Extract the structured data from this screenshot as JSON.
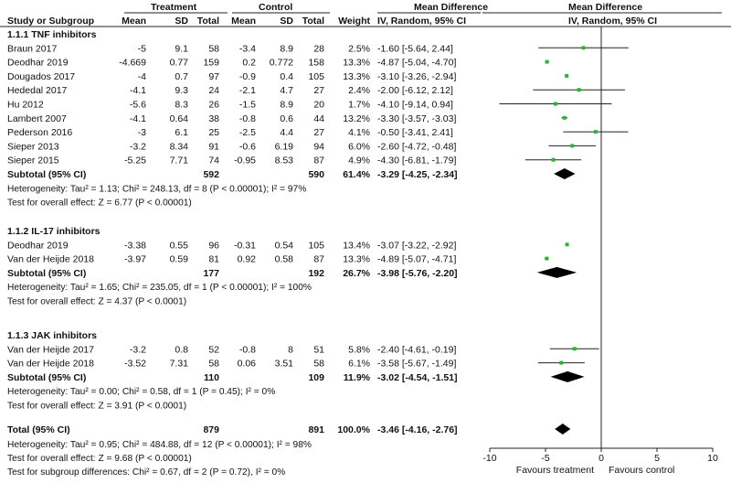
{
  "header": {
    "study_col": "Study or Subgroup",
    "treatment": "Treatment",
    "control": "Control",
    "mean": "Mean",
    "sd": "SD",
    "total": "Total",
    "weight": "Weight",
    "md_title": "Mean Difference",
    "md_method": "IV, Random, 95% CI"
  },
  "chart_data": {
    "type": "forest",
    "title": "Mean Difference",
    "subtitle": "IV, Random, 95% CI",
    "xlim": [
      -10,
      10
    ],
    "xticks": [
      -10,
      -5,
      0,
      5,
      10
    ],
    "xtick_labels": [
      "-10",
      "-5",
      "0",
      "5",
      "10"
    ],
    "xlabel_left": "Favours treatment",
    "xlabel_right": "Favours control",
    "groups": [
      {
        "name": "1.1.1 TNF inhibitors",
        "studies": [
          {
            "study": "Braun 2017",
            "t_mean": "-5",
            "t_sd": "9.1",
            "t_total": "58",
            "c_mean": "-3.4",
            "c_sd": "8.9",
            "c_total": "28",
            "weight": "2.5%",
            "ci_text": "-1.60 [-5.64, 2.44]",
            "md": -1.6,
            "lo": -5.64,
            "hi": 2.44
          },
          {
            "study": "Deodhar 2019",
            "t_mean": "-4.669",
            "t_sd": "0.77",
            "t_total": "159",
            "c_mean": "0.2",
            "c_sd": "0.772",
            "c_total": "158",
            "weight": "13.3%",
            "ci_text": "-4.87 [-5.04, -4.70]",
            "md": -4.87,
            "lo": -5.04,
            "hi": -4.7
          },
          {
            "study": "Dougados 2017",
            "t_mean": "-4",
            "t_sd": "0.7",
            "t_total": "97",
            "c_mean": "-0.9",
            "c_sd": "0.4",
            "c_total": "105",
            "weight": "13.3%",
            "ci_text": "-3.10 [-3.26, -2.94]",
            "md": -3.1,
            "lo": -3.26,
            "hi": -2.94
          },
          {
            "study": "Hededal 2017",
            "t_mean": "-4.1",
            "t_sd": "9.3",
            "t_total": "24",
            "c_mean": "-2.1",
            "c_sd": "4.7",
            "c_total": "27",
            "weight": "2.4%",
            "ci_text": "-2.00 [-6.12, 2.12]",
            "md": -2.0,
            "lo": -6.12,
            "hi": 2.12
          },
          {
            "study": "Hu 2012",
            "t_mean": "-5.6",
            "t_sd": "8.3",
            "t_total": "26",
            "c_mean": "-1.5",
            "c_sd": "8.9",
            "c_total": "20",
            "weight": "1.7%",
            "ci_text": "-4.10 [-9.14, 0.94]",
            "md": -4.1,
            "lo": -9.14,
            "hi": 0.94
          },
          {
            "study": "Lambert 2007",
            "t_mean": "-4.1",
            "t_sd": "0.64",
            "t_total": "38",
            "c_mean": "-0.8",
            "c_sd": "0.6",
            "c_total": "44",
            "weight": "13.2%",
            "ci_text": "-3.30 [-3.57, -3.03]",
            "md": -3.3,
            "lo": -3.57,
            "hi": -3.03
          },
          {
            "study": "Pederson 2016",
            "t_mean": "-3",
            "t_sd": "6.1",
            "t_total": "25",
            "c_mean": "-2.5",
            "c_sd": "4.4",
            "c_total": "27",
            "weight": "4.1%",
            "ci_text": "-0.50 [-3.41, 2.41]",
            "md": -0.5,
            "lo": -3.41,
            "hi": 2.41
          },
          {
            "study": "Sieper 2013",
            "t_mean": "-3.2",
            "t_sd": "8.34",
            "t_total": "91",
            "c_mean": "-0.6",
            "c_sd": "6.19",
            "c_total": "94",
            "weight": "6.0%",
            "ci_text": "-2.60 [-4.72, -0.48]",
            "md": -2.6,
            "lo": -4.72,
            "hi": -0.48
          },
          {
            "study": "Sieper 2015",
            "t_mean": "-5.25",
            "t_sd": "7.71",
            "t_total": "74",
            "c_mean": "-0.95",
            "c_sd": "8.53",
            "c_total": "87",
            "weight": "4.9%",
            "ci_text": "-4.30 [-6.81, -1.79]",
            "md": -4.3,
            "lo": -6.81,
            "hi": -1.79
          }
        ],
        "subtotal": {
          "label": "Subtotal (95% CI)",
          "t_total": "592",
          "c_total": "590",
          "weight": "61.4%",
          "ci_text": "-3.29 [-4.25, -2.34]",
          "md": -3.29,
          "lo": -4.25,
          "hi": -2.34
        },
        "heterogeneity": "Heterogeneity: Tau² = 1.13; Chi² = 248.13, df = 8 (P < 0.00001); I² = 97%",
        "overall_effect": "Test for overall effect: Z = 6.77 (P < 0.00001)"
      },
      {
        "name": "1.1.2 IL-17 inhibitors",
        "studies": [
          {
            "study": "Deodhar 2019",
            "t_mean": "-3.38",
            "t_sd": "0.55",
            "t_total": "96",
            "c_mean": "-0.31",
            "c_sd": "0.54",
            "c_total": "105",
            "weight": "13.4%",
            "ci_text": "-3.07 [-3.22, -2.92]",
            "md": -3.07,
            "lo": -3.22,
            "hi": -2.92
          },
          {
            "study": "Van der Heijde 2018",
            "t_mean": "-3.97",
            "t_sd": "0.59",
            "t_total": "81",
            "c_mean": "0.92",
            "c_sd": "0.58",
            "c_total": "87",
            "weight": "13.3%",
            "ci_text": "-4.89 [-5.07, -4.71]",
            "md": -4.89,
            "lo": -5.07,
            "hi": -4.71
          }
        ],
        "subtotal": {
          "label": "Subtotal (95% CI)",
          "t_total": "177",
          "c_total": "192",
          "weight": "26.7%",
          "ci_text": "-3.98 [-5.76, -2.20]",
          "md": -3.98,
          "lo": -5.76,
          "hi": -2.2
        },
        "heterogeneity": "Heterogeneity: Tau² = 1.65; Chi² = 235.05, df = 1 (P < 0.00001); I² = 100%",
        "overall_effect": "Test for overall effect: Z = 4.37 (P < 0.0001)"
      },
      {
        "name": "1.1.3 JAK inhibitors",
        "studies": [
          {
            "study": "Van der Heijde 2017",
            "t_mean": "-3.2",
            "t_sd": "0.8",
            "t_total": "52",
            "c_mean": "-0.8",
            "c_sd": "8",
            "c_total": "51",
            "weight": "5.8%",
            "ci_text": "-2.40 [-4.61, -0.19]",
            "md": -2.4,
            "lo": -4.61,
            "hi": -0.19
          },
          {
            "study": "Van der Heijde 2018",
            "t_mean": "-3.52",
            "t_sd": "7.31",
            "t_total": "58",
            "c_mean": "0.06",
            "c_sd": "3.51",
            "c_total": "58",
            "weight": "6.1%",
            "ci_text": "-3.58 [-5.67, -1.49]",
            "md": -3.58,
            "lo": -5.67,
            "hi": -1.49
          }
        ],
        "subtotal": {
          "label": "Subtotal (95% CI)",
          "t_total": "110",
          "c_total": "109",
          "weight": "11.9%",
          "ci_text": "-3.02 [-4.54, -1.51]",
          "md": -3.02,
          "lo": -4.54,
          "hi": -1.51
        },
        "heterogeneity": "Heterogeneity: Tau² = 0.00; Chi² = 0.58, df = 1 (P = 0.45); I² = 0%",
        "overall_effect": "Test for overall effect: Z = 3.91 (P < 0.0001)"
      }
    ],
    "total": {
      "label": "Total (95% CI)",
      "t_total": "879",
      "c_total": "891",
      "weight": "100.0%",
      "ci_text": "-3.46 [-4.16, -2.76]",
      "md": -3.46,
      "lo": -4.16,
      "hi": -2.76,
      "heterogeneity": "Heterogeneity: Tau² = 0.95; Chi² = 484.88, df = 12 (P < 0.00001); I² = 98%",
      "overall_effect": "Test for overall effect: Z = 9.68 (P < 0.00001)",
      "subgroup_diff": "Test for subgroup differences: Chi² = 0.67, df = 2 (P = 0.72), I² = 0%"
    },
    "colors": {
      "point": "#27b832",
      "line": "#222222",
      "diamond": "#000000"
    }
  }
}
